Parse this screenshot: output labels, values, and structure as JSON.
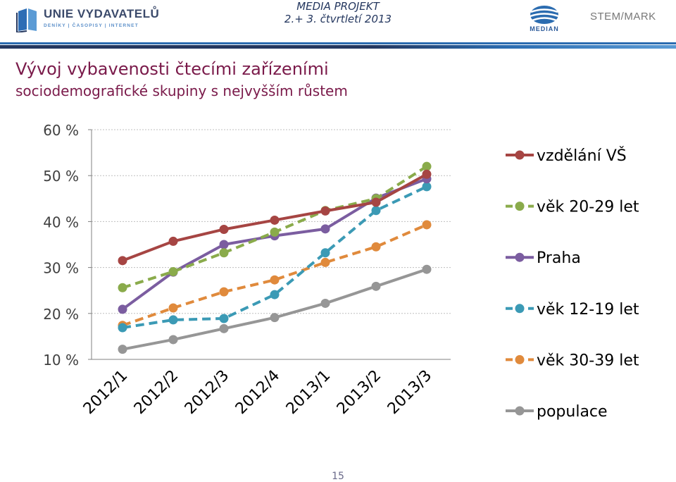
{
  "header": {
    "logo_name": "UNIE VYDAVATELŮ",
    "logo_sub": "DENÍKY | ČASOPISY | INTERNET",
    "project_title": "MEDIA PROJEKT",
    "project_period": "2.+ 3. čtvrtletí 2013",
    "median_label": "MEDIAN",
    "stem_label": "STEM/MARK",
    "colors": {
      "navy": "#24375f",
      "accent_blue": "#2b6cb0"
    }
  },
  "slide": {
    "title": "Vývoj vybavenosti čtecími zařízeními",
    "subtitle": "sociodemografické skupiny s nejvyšším růstem",
    "page_number": "15"
  },
  "chart_data": {
    "type": "line",
    "categories": [
      "2012/1",
      "2012/2",
      "2012/3",
      "2012/4",
      "2013/1",
      "2013/2",
      "2013/3"
    ],
    "y_ticks": [
      "60 %",
      "50 %",
      "40 %",
      "30 %",
      "20 %",
      "10 %"
    ],
    "ylim": [
      10,
      60
    ],
    "grid": "horizontal dotted",
    "legend_position": "right",
    "series": [
      {
        "name": "vzdělání VŠ",
        "color": "#a64543",
        "dashed": false,
        "values": [
          31.5,
          35.7,
          38.3,
          40.3,
          42.3,
          44.2,
          50.3
        ]
      },
      {
        "name": "věk 20-29 let",
        "color": "#8aab4b",
        "dashed": true,
        "values": [
          25.6,
          29.1,
          33.2,
          37.7,
          42.4,
          45.0,
          52.0
        ]
      },
      {
        "name": "Praha",
        "color": "#7b5da0",
        "dashed": false,
        "values": [
          20.9,
          29.0,
          35.0,
          36.9,
          38.4,
          45.1,
          49.3
        ]
      },
      {
        "name": "věk 12-19 let",
        "color": "#3b9ab5",
        "dashed": true,
        "values": [
          16.9,
          18.6,
          18.9,
          24.1,
          33.2,
          42.4,
          47.6
        ]
      },
      {
        "name": "věk 30-39 let",
        "color": "#e08a3c",
        "dashed": true,
        "values": [
          17.4,
          21.2,
          24.7,
          27.3,
          31.1,
          34.5,
          39.3
        ]
      },
      {
        "name": "populace",
        "color": "#969696",
        "dashed": false,
        "values": [
          12.2,
          14.3,
          16.7,
          19.1,
          22.2,
          25.9,
          29.6
        ]
      }
    ]
  }
}
